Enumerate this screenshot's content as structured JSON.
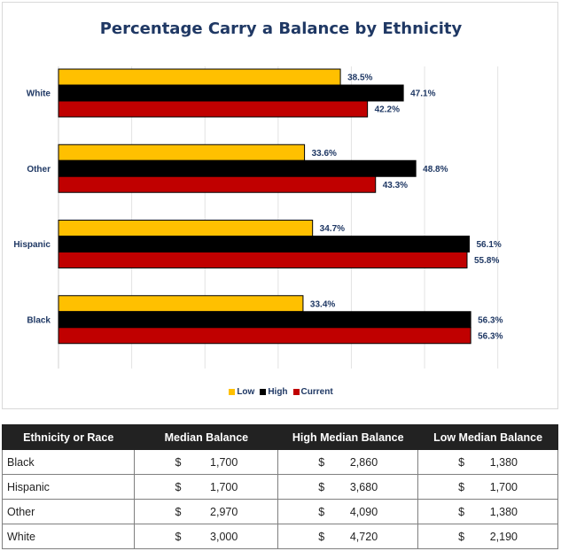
{
  "chart_data": {
    "type": "bar",
    "orientation": "horizontal",
    "title": "Percentage Carry a Balance by Ethnicity",
    "categories": [
      "White",
      "Other",
      "Hispanic",
      "Black"
    ],
    "series": [
      {
        "name": "Low",
        "color": "#ffc000",
        "values": [
          38.5,
          33.6,
          34.7,
          33.4
        ],
        "labels": [
          "38.5%",
          "33.6%",
          "34.7%",
          "33.4%"
        ]
      },
      {
        "name": "High",
        "color": "#000000",
        "values": [
          47.1,
          48.8,
          56.1,
          56.3
        ],
        "labels": [
          "47.1%",
          "48.8%",
          "56.1%",
          "56.3%"
        ]
      },
      {
        "name": "Current",
        "color": "#c00000",
        "values": [
          42.2,
          43.3,
          55.8,
          56.3
        ],
        "labels": [
          "42.2%",
          "43.3%",
          "55.8%",
          "56.3%"
        ]
      }
    ],
    "xlim": [
      0,
      65
    ],
    "gridlines": true,
    "legend_position": "bottom"
  },
  "table": {
    "headers": [
      "Ethnicity or Race",
      "Median Balance",
      "High Median Balance",
      "Low Median Balance"
    ],
    "currency_symbol": "$",
    "rows": [
      {
        "name": "Black",
        "median": "1,700",
        "high": "2,860",
        "low": "1,380"
      },
      {
        "name": "Hispanic",
        "median": "1,700",
        "high": "3,680",
        "low": "1,700"
      },
      {
        "name": "Other",
        "median": "2,970",
        "high": "4,090",
        "low": "1,380"
      },
      {
        "name": "White",
        "median": "3,000",
        "high": "4,720",
        "low": "2,190"
      }
    ]
  }
}
